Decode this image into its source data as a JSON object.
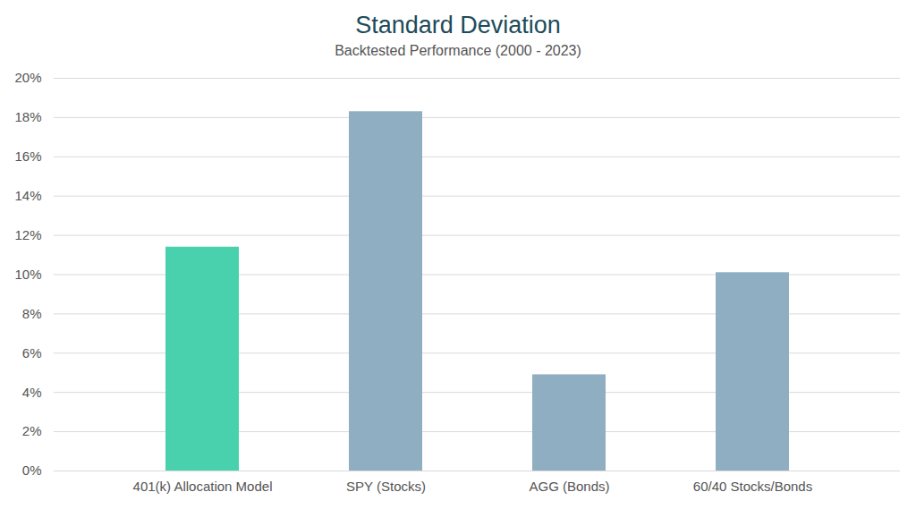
{
  "chart_data": {
    "type": "bar",
    "title": "Standard Deviation",
    "subtitle": "Backtested Performance (2000 - 2023)",
    "categories": [
      "401(k) Allocation Model",
      "SPY (Stocks)",
      "AGG (Bonds)",
      "60/40 Stocks/Bonds"
    ],
    "values": [
      11.4,
      18.3,
      4.9,
      10.1
    ],
    "colors": [
      "#48d1ac",
      "#8faec2",
      "#8faec2",
      "#8faec2"
    ],
    "ylim": [
      0,
      20
    ],
    "yticks": [
      {
        "value": 0,
        "label": "0%"
      },
      {
        "value": 2,
        "label": "2%"
      },
      {
        "value": 4,
        "label": "4%"
      },
      {
        "value": 6,
        "label": "6%"
      },
      {
        "value": 8,
        "label": "8%"
      },
      {
        "value": 10,
        "label": "10%"
      },
      {
        "value": 12,
        "label": "12%"
      },
      {
        "value": 14,
        "label": "14%"
      },
      {
        "value": 16,
        "label": "16%"
      },
      {
        "value": 18,
        "label": "18%"
      },
      {
        "value": 20,
        "label": "20%"
      }
    ],
    "grid": true
  }
}
